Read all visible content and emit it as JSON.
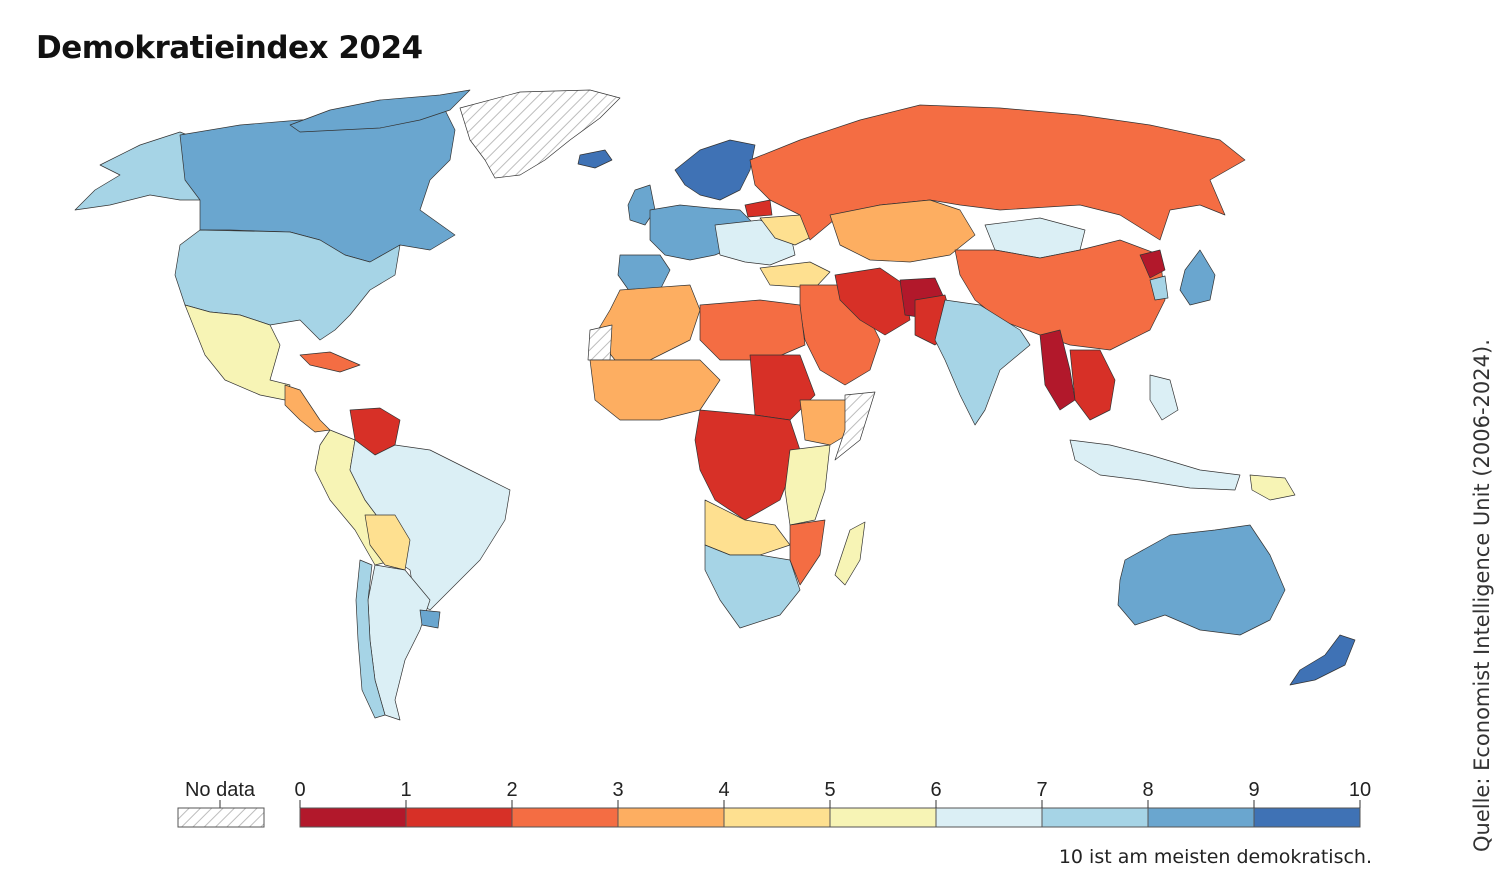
{
  "title": "Demokratieindex 2024",
  "source": "Quelle: Economist Intelligence Unit (2006-2024).",
  "note": "10 ist am meisten demokratisch.",
  "legend": {
    "no_data_label": "No data",
    "ticks": [
      "0",
      "1",
      "2",
      "3",
      "4",
      "5",
      "6",
      "7",
      "8",
      "9",
      "10"
    ],
    "bins": [
      {
        "range": [
          0,
          1
        ],
        "color": "#b2182b"
      },
      {
        "range": [
          1,
          2
        ],
        "color": "#d73027"
      },
      {
        "range": [
          2,
          3
        ],
        "color": "#f46d43"
      },
      {
        "range": [
          3,
          4
        ],
        "color": "#fdae61"
      },
      {
        "range": [
          4,
          5
        ],
        "color": "#fee090"
      },
      {
        "range": [
          5,
          6
        ],
        "color": "#f7f4b5"
      },
      {
        "range": [
          6,
          7
        ],
        "color": "#dbeff5"
      },
      {
        "range": [
          7,
          8
        ],
        "color": "#a6d4e6"
      },
      {
        "range": [
          8,
          9
        ],
        "color": "#6aa6cf"
      },
      {
        "range": [
          9,
          10
        ],
        "color": "#3f72b5"
      }
    ]
  },
  "colors": {
    "no_data_hatch": "#c8c8c8",
    "border": "#333333"
  }
}
